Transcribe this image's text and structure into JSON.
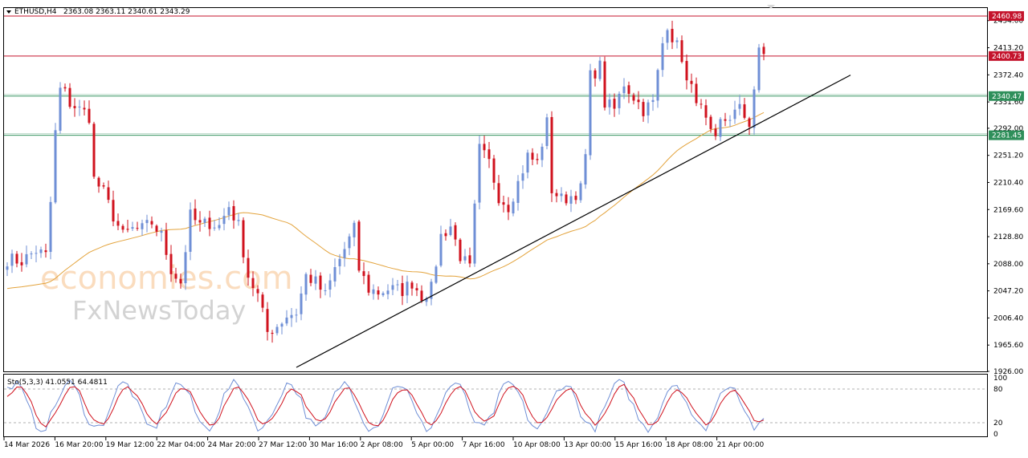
{
  "header": {
    "symbol_label": "ETHUSD,H4",
    "ohlc_text": "2363.08 2363.11 2340.61 2343.29"
  },
  "watermark": {
    "line1": "economies.com",
    "line2": "FxNewsToday"
  },
  "colors": {
    "bull": "#6f8fd6",
    "bear": "#d0121e",
    "ma": "#e3a33c",
    "resistance": "#c4142c",
    "support": "#2e8f5a",
    "trend": "#000000",
    "stoch_main": "#6f8fd6",
    "stoch_signal": "#d0121e"
  },
  "chart_data": {
    "type": "candlestick",
    "ylim": [
      1926.0,
      2473.0
    ],
    "y_ticks": [
      "2454.00",
      "2413.20",
      "2372.40",
      "2331.60",
      "2292.00",
      "2251.20",
      "2210.40",
      "2169.60",
      "2128.80",
      "2088.00",
      "2047.20",
      "2006.40",
      "1965.60",
      "1926.00"
    ],
    "x_ticks": [
      "14 Mar 2026",
      "16 Mar 20:00",
      "19 Mar 12:00",
      "22 Mar 04:00",
      "24 Mar 20:00",
      "27 Mar 12:00",
      "30 Mar 16:00",
      "2 Apr 08:00",
      "5 Apr 00:00",
      "7 Apr 16:00",
      "10 Apr 08:00",
      "13 Apr 00:00",
      "15 Apr 16:00",
      "18 Apr 08:00",
      "21 Apr 00:00"
    ],
    "levels": [
      {
        "label": "2460.98",
        "value": 2460.98,
        "kind": "resistance"
      },
      {
        "label": "2400.73",
        "value": 2400.73,
        "kind": "resistance"
      },
      {
        "label": "2340.47",
        "value": 2340.47,
        "kind": "support"
      },
      {
        "label": "2281.45",
        "value": 2281.45,
        "kind": "support"
      }
    ],
    "trendline": {
      "from": [
        60,
        1932
      ],
      "to": [
        175,
        2372
      ]
    },
    "candle_count": 158,
    "close_path": [
      [
        0,
        2095
      ],
      [
        3,
        2092
      ],
      [
        6,
        2108
      ],
      [
        8,
        2100
      ],
      [
        9,
        2180
      ],
      [
        10,
        2285
      ],
      [
        11,
        2350
      ],
      [
        12,
        2345
      ],
      [
        13,
        2330
      ],
      [
        14,
        2325
      ],
      [
        15,
        2320
      ],
      [
        16,
        2316
      ],
      [
        17,
        2310
      ],
      [
        18,
        2215
      ],
      [
        20,
        2195
      ],
      [
        22,
        2160
      ],
      [
        24,
        2130
      ],
      [
        26,
        2140
      ],
      [
        28,
        2140
      ],
      [
        30,
        2150
      ],
      [
        32,
        2130
      ],
      [
        34,
        2080
      ],
      [
        36,
        2060
      ],
      [
        37,
        2110
      ],
      [
        38,
        2160
      ],
      [
        40,
        2145
      ],
      [
        42,
        2150
      ],
      [
        44,
        2145
      ],
      [
        46,
        2175
      ],
      [
        48,
        2145
      ],
      [
        50,
        2070
      ],
      [
        52,
        2040
      ],
      [
        54,
        1985
      ],
      [
        56,
        1995
      ],
      [
        58,
        2010
      ],
      [
        60,
        2015
      ],
      [
        62,
        2070
      ],
      [
        64,
        2060
      ],
      [
        66,
        2040
      ],
      [
        68,
        2080
      ],
      [
        70,
        2110
      ],
      [
        72,
        2140
      ],
      [
        73,
        2080
      ],
      [
        75,
        2050
      ],
      [
        77,
        2045
      ],
      [
        79,
        2050
      ],
      [
        82,
        2048
      ],
      [
        84,
        2060
      ],
      [
        86,
        2040
      ],
      [
        88,
        2050
      ],
      [
        90,
        2130
      ],
      [
        92,
        2145
      ],
      [
        94,
        2100
      ],
      [
        96,
        2080
      ],
      [
        98,
        2260
      ],
      [
        100,
        2240
      ],
      [
        102,
        2190
      ],
      [
        104,
        2175
      ],
      [
        106,
        2210
      ],
      [
        108,
        2250
      ],
      [
        110,
        2240
      ],
      [
        112,
        2300
      ],
      [
        113,
        2200
      ],
      [
        115,
        2185
      ],
      [
        117,
        2190
      ],
      [
        119,
        2200
      ],
      [
        120,
        2250
      ],
      [
        121,
        2370
      ],
      [
        123,
        2385
      ],
      [
        124,
        2330
      ],
      [
        126,
        2320
      ],
      [
        128,
        2360
      ],
      [
        130,
        2340
      ],
      [
        132,
        2320
      ],
      [
        134,
        2330
      ],
      [
        136,
        2420
      ],
      [
        137,
        2450
      ],
      [
        138,
        2430
      ],
      [
        140,
        2400
      ],
      [
        141,
        2360
      ],
      [
        143,
        2340
      ],
      [
        144,
        2320
      ],
      [
        146,
        2280
      ],
      [
        147,
        2270
      ],
      [
        148,
        2300
      ],
      [
        150,
        2310
      ],
      [
        152,
        2320
      ],
      [
        154,
        2300
      ],
      [
        156,
        2405
      ],
      [
        158,
        2400
      ],
      [
        159,
        2370
      ],
      [
        160,
        2343
      ]
    ],
    "stochastic": {
      "label": "Sto(5,3,3) 41.0551 64.4811",
      "ylim": [
        0,
        100
      ],
      "levels": [
        80,
        20
      ],
      "ticks": [
        "100",
        "80",
        "20",
        "0"
      ]
    }
  }
}
